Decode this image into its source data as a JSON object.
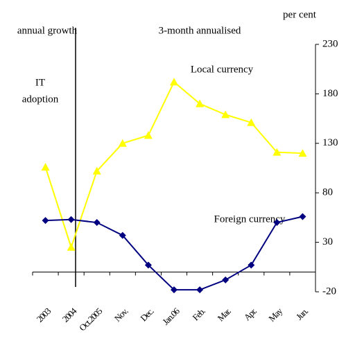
{
  "chart_data": {
    "type": "line",
    "unit_label": "per cent",
    "period_labels": [
      "annual growth",
      "3-month annualised"
    ],
    "event_label_lines": [
      "IT",
      "adoption"
    ],
    "categories": [
      "2003",
      "2004",
      "Oct.2005",
      "Nov.",
      "Dec.",
      "Jan.06",
      "Feb.",
      "Mar.",
      "Apr.",
      "May",
      "Jun."
    ],
    "series": [
      {
        "name": "Local currency",
        "color": "#ffff00",
        "marker": "triangle",
        "values": [
          106,
          25,
          102,
          130,
          138,
          192,
          170,
          159,
          151,
          121,
          120
        ]
      },
      {
        "name": "Foreign currency",
        "color": "#000080",
        "marker": "diamond",
        "values": [
          52,
          53,
          50,
          37,
          7,
          -18,
          -18,
          -8,
          7,
          50,
          56
        ]
      }
    ],
    "ylim": [
      -20,
      230
    ],
    "yticks": [
      -20,
      30,
      80,
      130,
      180,
      230
    ],
    "y_axis_side": "right"
  }
}
